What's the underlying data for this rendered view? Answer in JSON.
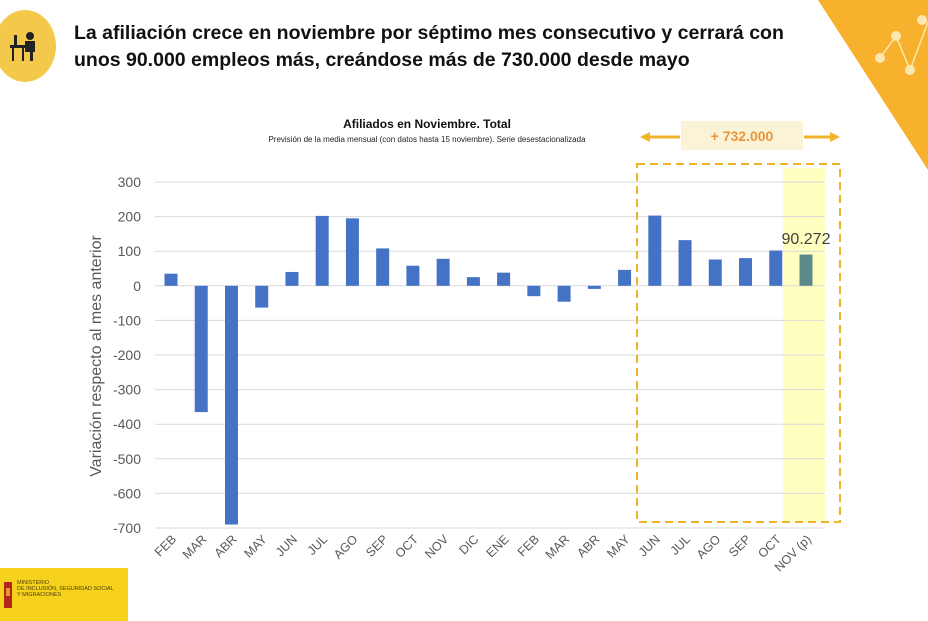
{
  "header": {
    "title": "La afiliación crece en noviembre por séptimo mes consecutivo y cerrará con unos 90.000 empleos más, creándose más de 730.000 desde mayo",
    "icon": "worker-at-desk-icon"
  },
  "logo": {
    "line1": "MINISTERIO",
    "line2": "DE INCLUSIÓN, SEGURIDAD SOCIAL",
    "line3": "Y MIGRACIONES"
  },
  "colors": {
    "bar": "#4472c4",
    "highlight_bar": "#5b8a8a",
    "accent": "#f0b429",
    "highlight_bg": "#ffffc0",
    "callout_bg": "#fbf3d5",
    "callout_text": "#e8943a"
  },
  "chart_data": {
    "type": "bar",
    "title": "Afiliados en Noviembre. Total",
    "subtitle": "Previsión de la media mensual (con datos hasta 15 noviembre). Serie desestacionalizada",
    "ylabel": "Variación respecto al mes anterior",
    "xlabel": "",
    "ylim": [
      -700,
      300
    ],
    "yticks": [
      "300",
      "200",
      "100",
      "0",
      "-100",
      "-200",
      "-300",
      "-400",
      "-500",
      "-600",
      "-700"
    ],
    "grid": true,
    "categories": [
      "FEB",
      "MAR",
      "ABR",
      "MAY",
      "JUN",
      "JUL",
      "AGO",
      "SEP",
      "OCT",
      "NOV",
      "DIC",
      "ENE",
      "FEB",
      "MAR",
      "ABR",
      "MAY",
      "JUN",
      "JUL",
      "AGO",
      "SEP",
      "OCT",
      "NOV (p)"
    ],
    "values": [
      35,
      -365,
      -690,
      -63,
      40,
      202,
      195,
      108,
      58,
      78,
      25,
      38,
      -30,
      -46,
      -9,
      46,
      203,
      132,
      76,
      80,
      102,
      90.272
    ],
    "data_label": "90.272",
    "annotation": "+ 732.000",
    "highlight_range": [
      "JUN",
      "NOV (p)"
    ]
  }
}
